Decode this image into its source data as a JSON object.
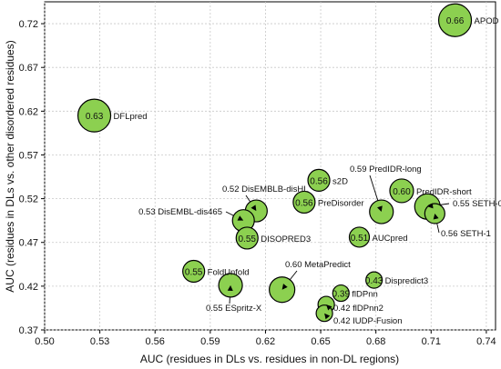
{
  "chart_data": {
    "type": "scatter",
    "title": "",
    "xlabel": "AUC (residues in DLs vs. residues in non-DL regions)",
    "ylabel": "AUC (residues in DLs vs. other disordered residues)",
    "xlim": [
      0.5,
      0.745
    ],
    "ylim": [
      0.37,
      0.745
    ],
    "xticks": [
      "0.50",
      "0.53",
      "0.56",
      "0.59",
      "0.62",
      "0.65",
      "0.68",
      "0.71",
      "0.74"
    ],
    "yticks": [
      "0.37",
      "0.42",
      "0.47",
      "0.52",
      "0.57",
      "0.62",
      "0.67",
      "0.72"
    ],
    "grid": true,
    "marker_color": "#8cd050",
    "points": [
      {
        "name": "APOD",
        "x": 0.723,
        "y": 0.724,
        "value": "0.66",
        "label_text": "APOD"
      },
      {
        "name": "DFLpred",
        "x": 0.527,
        "y": 0.615,
        "value": "0.63",
        "label_text": "DFLpred"
      },
      {
        "name": "s2D",
        "x": 0.649,
        "y": 0.541,
        "value": "0.56",
        "label_text": "s2D"
      },
      {
        "name": "PredIDR-short",
        "x": 0.694,
        "y": 0.529,
        "value": "0.60",
        "label_text": "PredIDR-short"
      },
      {
        "name": "PreDisorder",
        "x": 0.641,
        "y": 0.516,
        "value": "0.56",
        "label_text": "PreDisorder"
      },
      {
        "name": "PredIDR-long",
        "x": 0.683,
        "y": 0.505,
        "value": "",
        "label_text": "0.59 PredIDR-long"
      },
      {
        "name": "DisEMBLB-disHL",
        "x": 0.615,
        "y": 0.506,
        "value": "",
        "label_text": "0.52 DisEMBLB-disHL"
      },
      {
        "name": "DisEMBL-dis465",
        "x": 0.608,
        "y": 0.495,
        "value": "",
        "label_text": "0.53 DisEMBL-dis465"
      },
      {
        "name": "SETH-0",
        "x": 0.708,
        "y": 0.511,
        "value": "",
        "label_text": "0.55 SETH-0"
      },
      {
        "name": "SETH-1",
        "x": 0.712,
        "y": 0.503,
        "value": "",
        "label_text": "0.56 SETH-1"
      },
      {
        "name": "DISOPRED3",
        "x": 0.61,
        "y": 0.475,
        "value": "0.55",
        "label_text": "DISOPRED3"
      },
      {
        "name": "AUCpred",
        "x": 0.671,
        "y": 0.476,
        "value": "0.51",
        "label_text": "AUCpred"
      },
      {
        "name": "FoldUnfold",
        "x": 0.581,
        "y": 0.437,
        "value": "0.55",
        "label_text": "FoldUnfold"
      },
      {
        "name": "ESpritz-X",
        "x": 0.601,
        "y": 0.421,
        "value": "",
        "label_text": "0.55  ESpritz-X"
      },
      {
        "name": "MetaPredict",
        "x": 0.629,
        "y": 0.416,
        "value": "",
        "label_text": "0.60 MetaPredict"
      },
      {
        "name": "Dispredict3",
        "x": 0.679,
        "y": 0.427,
        "value": "0.43",
        "label_text": "Dispredict3"
      },
      {
        "name": "flDPnn",
        "x": 0.661,
        "y": 0.412,
        "value": "0.39",
        "label_text": "flDPnn"
      },
      {
        "name": "flDPnn2",
        "x": 0.653,
        "y": 0.399,
        "value": "",
        "label_text": "0.42 flDPnn2"
      },
      {
        "name": "IUDP-Fusion",
        "x": 0.652,
        "y": 0.389,
        "value": "",
        "label_text": "0.42 IUDP-Fusion"
      }
    ]
  }
}
